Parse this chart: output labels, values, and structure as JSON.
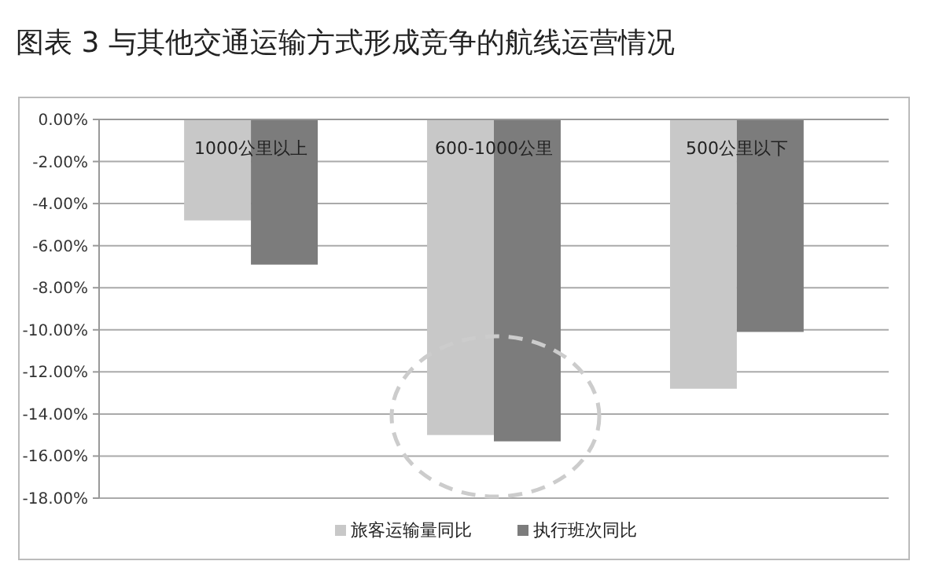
{
  "chart_data": {
    "type": "bar",
    "title": "图表 3  与其他交通运输方式形成竞争的航线运营情况",
    "categories": [
      "1000公里以上",
      "600-1000公里",
      "500公里以下"
    ],
    "series": [
      {
        "name": "旅客运输量同比",
        "color": "#c8c8c8",
        "values": [
          -4.8,
          -15.0,
          -12.8
        ]
      },
      {
        "name": "执行班次同比",
        "color": "#7c7c7c",
        "values": [
          -6.9,
          -15.3,
          -10.1
        ]
      }
    ],
    "ylim": [
      -18,
      0
    ],
    "yticks": [
      {
        "value": 0,
        "label": "0.00%"
      },
      {
        "value": -2,
        "label": "-2.00%"
      },
      {
        "value": -4,
        "label": "-4.00%"
      },
      {
        "value": -6,
        "label": "-6.00%"
      },
      {
        "value": -8,
        "label": "-8.00%"
      },
      {
        "value": -10,
        "label": "-10.00%"
      },
      {
        "value": -12,
        "label": "-12.00%"
      },
      {
        "value": -14,
        "label": "-14.00%"
      },
      {
        "value": -16,
        "label": "-16.00%"
      },
      {
        "value": -18,
        "label": "-18.00%"
      }
    ],
    "grid": "y",
    "legend": "bottom"
  }
}
